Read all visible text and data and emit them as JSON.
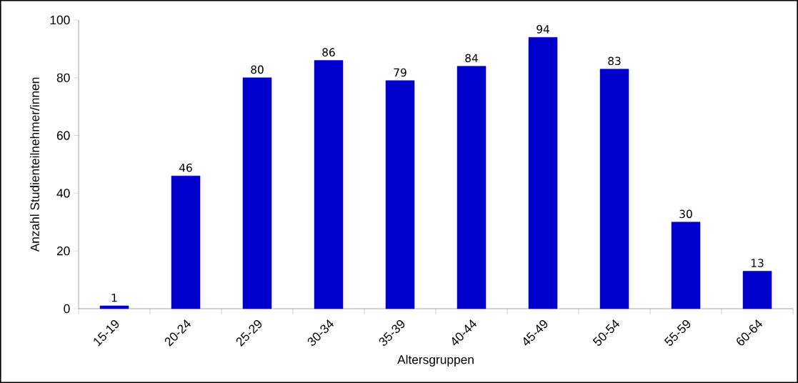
{
  "chart_data": {
    "type": "bar",
    "xlabel": "Altersgruppen",
    "ylabel": "Anzahl Studienteilnehmer/innen",
    "categories": [
      "15-19",
      "20-24",
      "25-29",
      "30-34",
      "35-39",
      "40-44",
      "45-49",
      "50-54",
      "55-59",
      "60-64"
    ],
    "values": [
      1,
      46,
      80,
      86,
      79,
      84,
      94,
      83,
      30,
      13
    ],
    "color": "#0000cc",
    "ylim": [
      0,
      100
    ],
    "yticks": [
      0,
      20,
      40,
      60,
      80,
      100
    ],
    "data_labels": true,
    "grid": false
  }
}
